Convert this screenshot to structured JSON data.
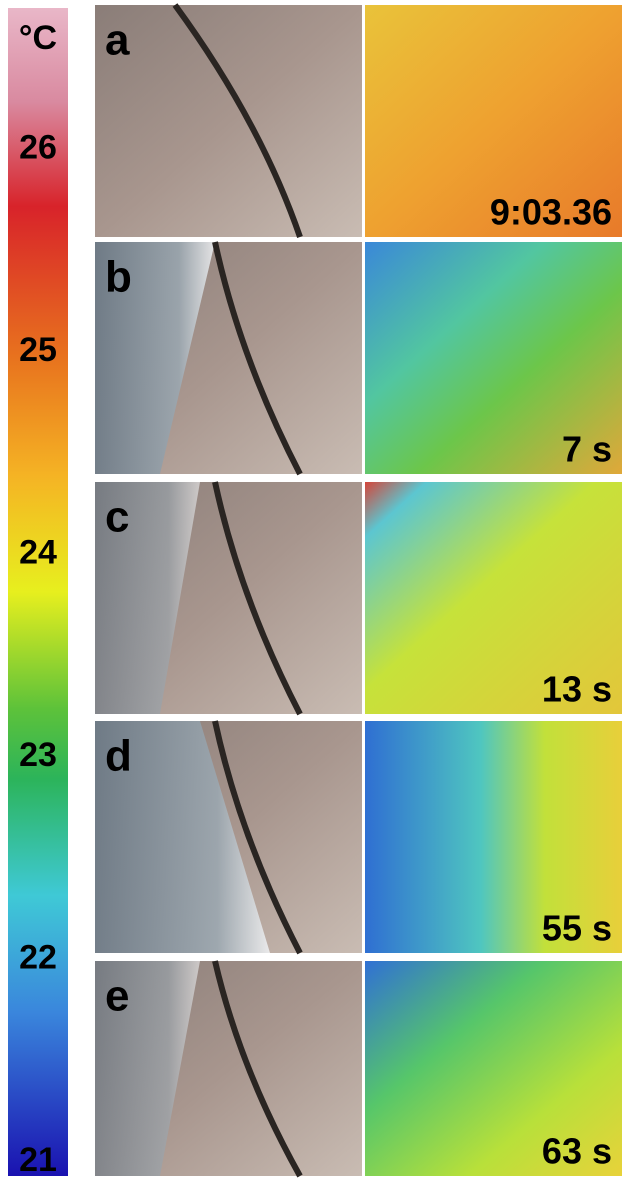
{
  "colorbar": {
    "unit": "°C",
    "ticks": [
      26,
      25,
      24,
      23,
      22,
      21
    ],
    "range": [
      20.93,
      26.7
    ]
  },
  "panels": [
    {
      "letter": "a",
      "time": "9:03.36"
    },
    {
      "letter": "b",
      "time": "7 s"
    },
    {
      "letter": "c",
      "time": "13 s"
    },
    {
      "letter": "d",
      "time": "55 s"
    },
    {
      "letter": "e",
      "time": "63 s"
    }
  ]
}
